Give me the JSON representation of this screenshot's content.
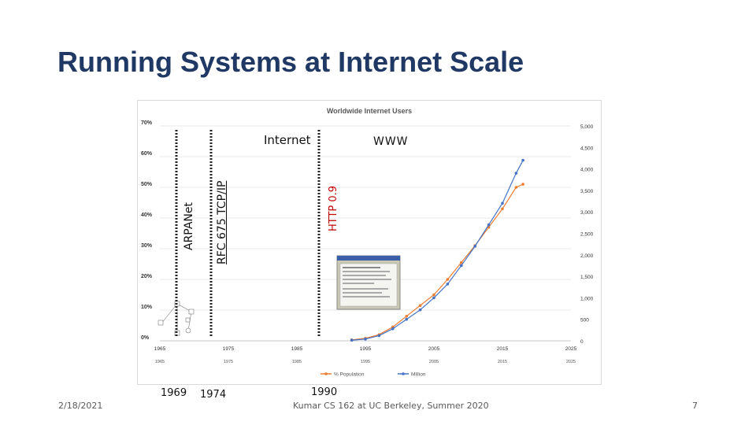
{
  "slide": {
    "title": "Running Systems at Internet Scale",
    "date": "2/18/2021",
    "footer": "Kumar CS 162 at UC Berkeley, Summer 2020",
    "page_number": "7"
  },
  "annotations": {
    "arpanet": "ARPANet",
    "rfc": "RFC 675 TCP/IP",
    "http": "HTTP 0.9",
    "internet": "Internet",
    "www": "WWW",
    "year_1969": "1969",
    "year_1974": "1974",
    "year_1990": "1990"
  },
  "colors": {
    "title": "#1f3864",
    "population_series": "#ed7d31",
    "million_series": "#4472c4",
    "http_label": "#c00000"
  },
  "chart_data": {
    "type": "line",
    "title": "Worldwide Internet Users",
    "xlabel": "",
    "ylabel": "",
    "x_ticks": [
      "1965",
      "1975",
      "1985",
      "1995",
      "2005",
      "2015",
      "2025"
    ],
    "x_ticks_secondary": [
      "1965",
      "1975",
      "1985",
      "1995",
      "2005",
      "2015",
      "2025"
    ],
    "y_left_ticks": [
      "0%",
      "10%",
      "20%",
      "30%",
      "40%",
      "50%",
      "60%",
      "70%"
    ],
    "y_right_ticks": [
      "0",
      "500",
      "1,000",
      "1,500",
      "2,000",
      "2,500",
      "3,000",
      "3,500",
      "4,000",
      "4,500",
      "5,000"
    ],
    "xlim": [
      1965,
      2025
    ],
    "ylim_left": [
      0,
      70
    ],
    "ylim_right": [
      0,
      5000
    ],
    "legend_position": "bottom",
    "series": [
      {
        "name": "% Population",
        "axis": "left",
        "x": [
          1993,
          1995,
          1997,
          1999,
          2001,
          2003,
          2005,
          2007,
          2009,
          2011,
          2013,
          2015,
          2017,
          2018
        ],
        "values": [
          0.3,
          0.8,
          2,
          4.5,
          8,
          11.5,
          15,
          20,
          25.5,
          31,
          37,
          43,
          50,
          51
        ]
      },
      {
        "name": "Million",
        "axis": "right",
        "x": [
          1993,
          1995,
          1997,
          1999,
          2001,
          2003,
          2005,
          2007,
          2009,
          2011,
          2013,
          2015,
          2017,
          2018
        ],
        "values": [
          14,
          40,
          120,
          280,
          500,
          720,
          1000,
          1320,
          1750,
          2200,
          2700,
          3200,
          3900,
          4200
        ]
      }
    ]
  }
}
